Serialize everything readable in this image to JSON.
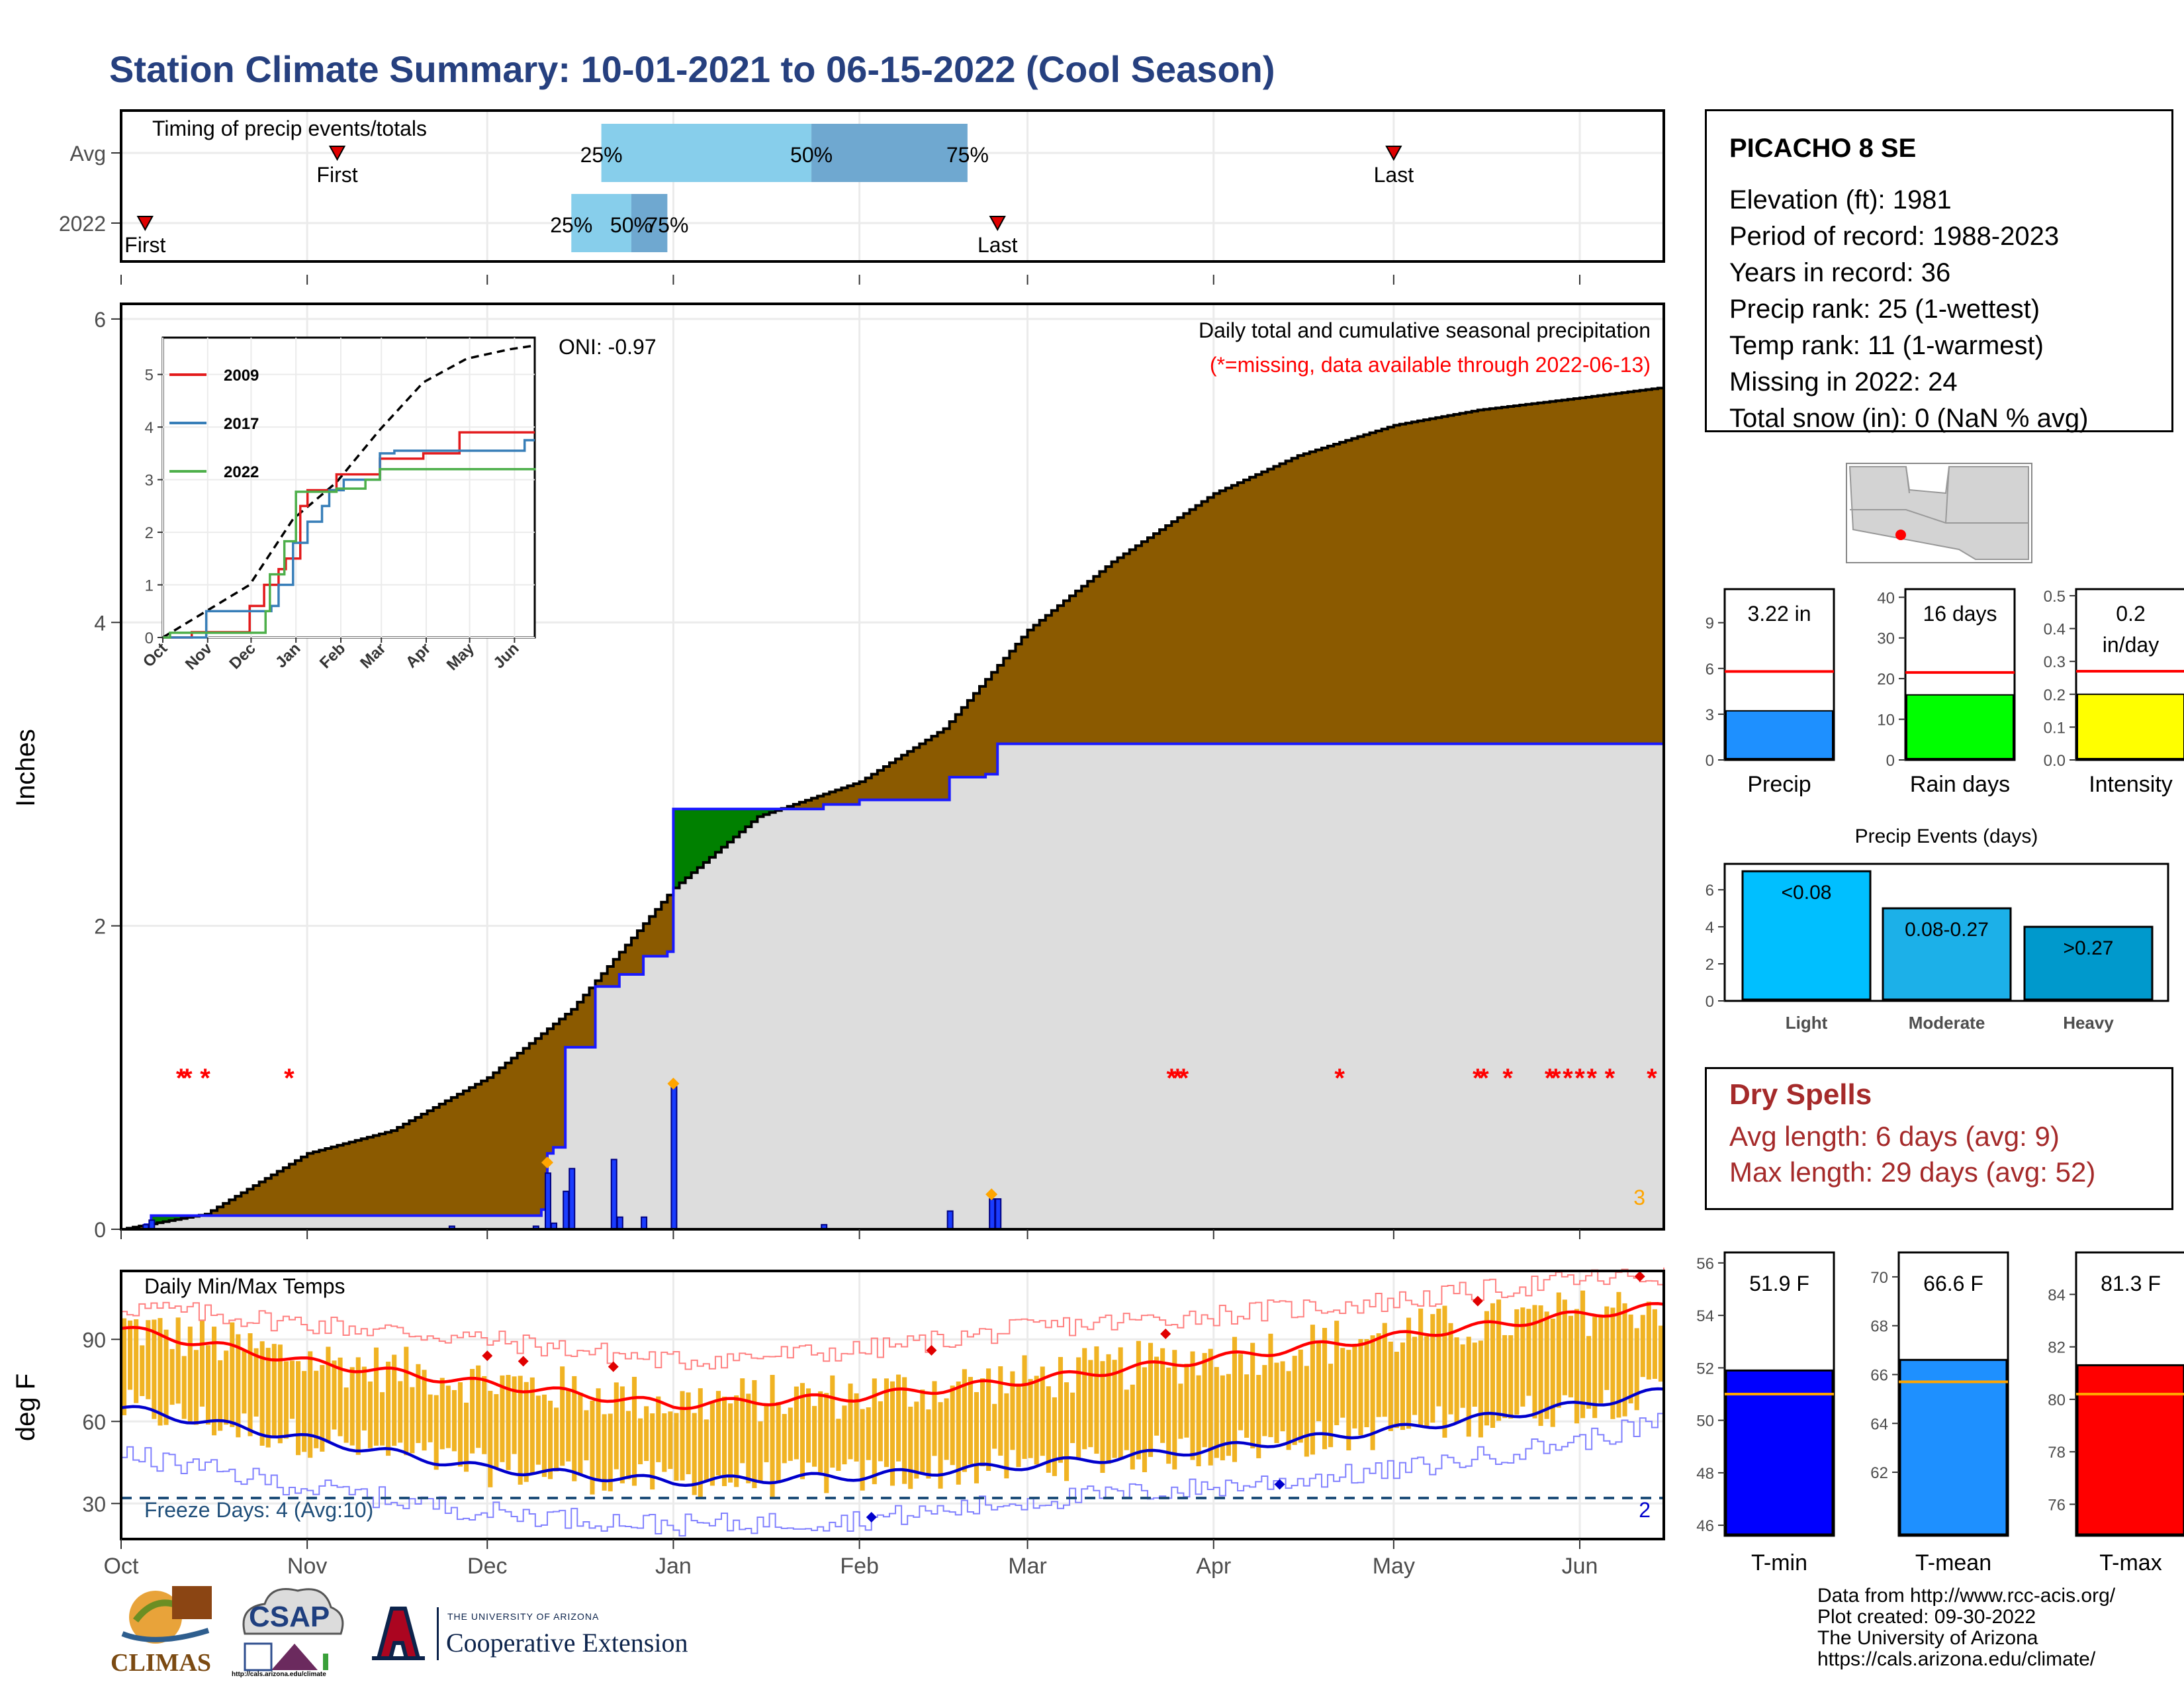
{
  "title": "Station Climate Summary: 10-01-2021 to 06-15-2022 (Cool Season)",
  "colors": {
    "title": "#26407f",
    "precip_fill": "#8b5a00",
    "normal_fill": "#dddddd",
    "deficit_fill": "#008000",
    "daily_bar": "#1a3cff",
    "temp_bar": "#f0b323",
    "tmax_line": "#ff0000",
    "tmin_line": "#0000cc",
    "missing": "#ff0000",
    "ext_marker": "#ffa500"
  },
  "timing": {
    "label": "Timing of precip events/totals",
    "rows": [
      "Avg",
      "2022"
    ],
    "avg": {
      "first_date": "2021-11-06",
      "last_date": "2022-05-01",
      "p25_date": "2021-12-20",
      "p50_date": "2022-01-24",
      "p75_date": "2022-02-19",
      "first_label": "First",
      "last_label": "Last",
      "p25_label": "25%",
      "p50_label": "50%",
      "p75_label": "75%"
    },
    "y2022": {
      "first_date": "2021-10-05",
      "last_date": "2022-02-24",
      "p25_date": "2021-12-15",
      "p50_date": "2021-12-25",
      "p75_date": "2021-12-31",
      "first_label": "First",
      "last_label": "Last",
      "p25_label": "25%",
      "p50_label": "50%",
      "p75_label": "75%"
    }
  },
  "precip_panel": {
    "ylabel": "Inches",
    "y_ticks": [
      "0",
      "2",
      "4",
      "6"
    ],
    "header": "Daily total and cumulative seasonal precipitation",
    "missing_note": "(*=missing, data available through 2022-06-13)",
    "oni": "ONI: -0.97",
    "extreme_count": "3",
    "observed_cumulative_steps": [
      [
        "2021-10-01",
        0
      ],
      [
        "2021-10-05",
        0.03
      ],
      [
        "2021-10-06",
        0.09
      ],
      [
        "2021-12-10",
        0.13
      ],
      [
        "2021-12-11",
        0.5
      ],
      [
        "2021-12-12",
        0.54
      ],
      [
        "2021-12-14",
        1.2
      ],
      [
        "2021-12-19",
        1.6
      ],
      [
        "2021-12-23",
        1.68
      ],
      [
        "2021-12-27",
        1.8
      ],
      [
        "2021-12-31",
        1.83
      ],
      [
        "2022-01-01",
        2.77
      ],
      [
        "2022-01-26",
        2.8
      ],
      [
        "2022-02-01",
        2.83
      ],
      [
        "2022-02-16",
        2.98
      ],
      [
        "2022-02-22",
        3.0
      ],
      [
        "2022-02-24",
        3.2
      ],
      [
        "2022-06-15",
        3.22
      ]
    ],
    "average_cumulative": [
      [
        "2021-10-01",
        0
      ],
      [
        "2021-10-15",
        0.1
      ],
      [
        "2021-11-01",
        0.5
      ],
      [
        "2021-11-15",
        0.65
      ],
      [
        "2021-12-01",
        1.0
      ],
      [
        "2021-12-15",
        1.45
      ],
      [
        "2022-01-01",
        2.25
      ],
      [
        "2022-01-15",
        2.72
      ],
      [
        "2022-02-01",
        2.95
      ],
      [
        "2022-02-15",
        3.3
      ],
      [
        "2022-03-01",
        3.95
      ],
      [
        "2022-03-15",
        4.4
      ],
      [
        "2022-04-01",
        4.85
      ],
      [
        "2022-04-15",
        5.1
      ],
      [
        "2022-05-01",
        5.3
      ],
      [
        "2022-05-15",
        5.4
      ],
      [
        "2022-06-01",
        5.48
      ],
      [
        "2022-06-15",
        5.55
      ]
    ],
    "daily_bars": [
      [
        "2021-10-05",
        0.03
      ],
      [
        "2021-10-06",
        0.06
      ],
      [
        "2021-11-25",
        0.02
      ],
      [
        "2021-12-09",
        0.02
      ],
      [
        "2021-12-11",
        0.37
      ],
      [
        "2021-12-12",
        0.04
      ],
      [
        "2021-12-14",
        0.25
      ],
      [
        "2021-12-15",
        0.4
      ],
      [
        "2021-12-22",
        0.46
      ],
      [
        "2021-12-23",
        0.08
      ],
      [
        "2021-12-27",
        0.08
      ],
      [
        "2022-01-01",
        0.94
      ],
      [
        "2022-01-26",
        0.03
      ],
      [
        "2022-02-16",
        0.12
      ],
      [
        "2022-02-23",
        0.2
      ],
      [
        "2022-02-24",
        0.2
      ]
    ],
    "extreme_markers": [
      [
        "2021-12-11",
        0.44
      ],
      [
        "2022-01-01",
        0.96
      ],
      [
        "2022-02-23",
        0.23
      ]
    ],
    "missing_dates": [
      "2021-10-11",
      "2021-10-12",
      "2021-10-15",
      "2021-10-29",
      "2022-03-25",
      "2022-03-26",
      "2022-03-27",
      "2022-04-22",
      "2022-05-15",
      "2022-05-16",
      "2022-05-20",
      "2022-05-27",
      "2022-05-28",
      "2022-05-30",
      "2022-06-01",
      "2022-06-03",
      "2022-06-06",
      "2022-06-13"
    ]
  },
  "inset": {
    "y_ticks": [
      "0",
      "1",
      "2",
      "3",
      "4",
      "5"
    ],
    "x_ticks": [
      "Oct",
      "Nov",
      "Dec",
      "Jan",
      "Feb",
      "Mar",
      "Apr",
      "May",
      "Jun"
    ],
    "series": [
      {
        "name": "2009",
        "color": "#e31a1c",
        "steps": [
          [
            0,
            0
          ],
          [
            20,
            0.1
          ],
          [
            60,
            0.6
          ],
          [
            70,
            1.0
          ],
          [
            80,
            1.3
          ],
          [
            85,
            1.5
          ],
          [
            95,
            2.5
          ],
          [
            100,
            2.8
          ],
          [
            120,
            3.1
          ],
          [
            150,
            3.4
          ],
          [
            180,
            3.5
          ],
          [
            205,
            3.9
          ],
          [
            250,
            3.9
          ]
        ]
      },
      {
        "name": "2017",
        "color": "#377eb8",
        "steps": [
          [
            0,
            0
          ],
          [
            30,
            0.5
          ],
          [
            75,
            0.6
          ],
          [
            80,
            1.0
          ],
          [
            90,
            1.8
          ],
          [
            100,
            2.2
          ],
          [
            110,
            2.5
          ],
          [
            115,
            2.8
          ],
          [
            125,
            3.0
          ],
          [
            150,
            3.5
          ],
          [
            160,
            3.55
          ],
          [
            200,
            3.55
          ],
          [
            250,
            3.75
          ]
        ]
      },
      {
        "name": "2022",
        "color": "#4daf4a",
        "steps": [
          [
            0,
            0
          ],
          [
            5,
            0.09
          ],
          [
            71,
            0.5
          ],
          [
            74,
            1.2
          ],
          [
            84,
            1.83
          ],
          [
            92,
            2.77
          ],
          [
            120,
            2.83
          ],
          [
            140,
            3.0
          ],
          [
            150,
            3.2
          ],
          [
            257,
            3.22
          ]
        ]
      }
    ],
    "avg_line": [
      [
        0,
        0
      ],
      [
        30,
        0.5
      ],
      [
        60,
        1.0
      ],
      [
        90,
        2.25
      ],
      [
        120,
        2.95
      ],
      [
        150,
        3.95
      ],
      [
        180,
        4.85
      ],
      [
        210,
        5.3
      ],
      [
        240,
        5.48
      ],
      [
        257,
        5.55
      ]
    ]
  },
  "temp_panel": {
    "label": "Daily Min/Max Temps",
    "ylabel": "deg F",
    "y_ticks": [
      "30",
      "60",
      "90"
    ],
    "freeze_label": "Freeze Days: 4 (Avg:10)",
    "record_count": "2",
    "x_ticks": [
      "Oct",
      "Nov",
      "Dec",
      "Jan",
      "Feb",
      "Mar",
      "Apr",
      "May",
      "Jun"
    ],
    "avg_tmax": [
      [
        0,
        94
      ],
      [
        30,
        82
      ],
      [
        60,
        74
      ],
      [
        92,
        66
      ],
      [
        123,
        69
      ],
      [
        151,
        75
      ],
      [
        182,
        83
      ],
      [
        212,
        91
      ],
      [
        243,
        99
      ],
      [
        257,
        102
      ]
    ],
    "avg_tmin": [
      [
        0,
        65
      ],
      [
        30,
        54
      ],
      [
        60,
        43
      ],
      [
        92,
        38
      ],
      [
        123,
        40
      ],
      [
        151,
        44
      ],
      [
        182,
        50
      ],
      [
        212,
        57
      ],
      [
        243,
        66
      ],
      [
        257,
        71
      ]
    ],
    "record_high": [
      [
        0,
        102
      ],
      [
        30,
        96
      ],
      [
        60,
        90
      ],
      [
        92,
        82
      ],
      [
        123,
        86
      ],
      [
        151,
        94
      ],
      [
        182,
        99
      ],
      [
        212,
        104
      ],
      [
        243,
        112
      ],
      [
        257,
        113
      ]
    ],
    "record_low": [
      [
        0,
        48
      ],
      [
        30,
        36
      ],
      [
        60,
        27
      ],
      [
        92,
        22
      ],
      [
        123,
        24
      ],
      [
        151,
        31
      ],
      [
        182,
        36
      ],
      [
        212,
        42
      ],
      [
        243,
        53
      ],
      [
        257,
        60
      ]
    ]
  },
  "station": {
    "name": "PICACHO 8 SE",
    "lines": [
      "Elevation (ft): 1981",
      "Period of record: 1988-2023",
      "Years in record: 36",
      "Precip rank: 25 (1-wettest)",
      "Temp rank: 11 (1-warmest)",
      "Missing in 2022: 24",
      "Total snow (in): 0 (NaN % avg)"
    ]
  },
  "precip_small": [
    {
      "label": "Precip",
      "value_label": "3.22 in",
      "value": 3.22,
      "avg": 5.8,
      "ymax": 11.2,
      "ticks": [
        "0",
        "3",
        "6",
        "9"
      ],
      "tick_vals": [
        0,
        3,
        6,
        9
      ],
      "color": "#1e90ff"
    },
    {
      "label": "Rain days",
      "value_label": "16 days",
      "value": 16,
      "avg": 21.5,
      "ymax": 42,
      "ticks": [
        "0",
        "10",
        "20",
        "30",
        "40"
      ],
      "tick_vals": [
        0,
        10,
        20,
        30,
        40
      ],
      "color": "#00ff00"
    },
    {
      "label": "Intensity",
      "value_label": "0.2 in/day",
      "value_line1": "0.2",
      "value_line2": "in/day",
      "value": 0.2,
      "avg": 0.27,
      "ymax": 0.52,
      "ticks": [
        "0.0",
        "0.1",
        "0.2",
        "0.3",
        "0.4",
        "0.5"
      ],
      "tick_vals": [
        0,
        0.1,
        0.2,
        0.3,
        0.4,
        0.5
      ],
      "color": "#ffff00"
    }
  ],
  "events": {
    "title": "Precip Events (days)",
    "ticks": [
      "0",
      "2",
      "4",
      "6"
    ],
    "bars": [
      {
        "category": "Light",
        "label": "<0.08",
        "value": 7,
        "color": "#00bfff"
      },
      {
        "category": "Moderate",
        "label": "0.08-0.27",
        "value": 5,
        "color": "#1cb0e8"
      },
      {
        "category": "Heavy",
        "label": ">0.27",
        "value": 4,
        "color": "#0099cc"
      }
    ]
  },
  "dry_spells": {
    "title": "Dry Spells",
    "avg_line": "Avg length: 6 days (avg: 9)",
    "max_line": "Max length: 29 days (avg: 52)",
    "color": "#a52a2a"
  },
  "temp_small": [
    {
      "label": "T-min",
      "value_label": "51.9 F",
      "value": 51.9,
      "avg": 51.0,
      "ymin": 45.6,
      "ymax": 56.4,
      "ticks": [
        "46",
        "48",
        "50",
        "52",
        "54",
        "56"
      ],
      "tick_vals": [
        46,
        48,
        50,
        52,
        54,
        56
      ],
      "color": "#0000ff"
    },
    {
      "label": "T-mean",
      "value_label": "66.6 F",
      "value": 66.6,
      "avg": 65.7,
      "ymin": 59.4,
      "ymax": 71.0,
      "ticks": [
        "62",
        "64",
        "66",
        "68",
        "70"
      ],
      "tick_vals": [
        62,
        64,
        66,
        68,
        70
      ],
      "color": "#1e90ff"
    },
    {
      "label": "T-max",
      "value_label": "81.3 F",
      "value": 81.3,
      "avg": 80.2,
      "ymin": 74.8,
      "ymax": 85.6,
      "ticks": [
        "76",
        "78",
        "80",
        "82",
        "84"
      ],
      "tick_vals": [
        76,
        78,
        80,
        82,
        84
      ],
      "color": "#ff0000"
    }
  ],
  "footer": {
    "lines": [
      "Data from http://www.rcc-acis.org/",
      "Plot created: 09-30-2022",
      "The University of Arizona",
      "https://cals.arizona.edu/climate/"
    ]
  },
  "logos": {
    "climas": "CLIMAS",
    "csap": "CSAP",
    "csap_url": "http://cals.arizona.edu/climate",
    "ua_top": "THE UNIVERSITY OF ARIZONA",
    "ua_bottom": "Cooperative Extension"
  },
  "chart_data": [
    {
      "type": "line",
      "title": "Daily total and cumulative seasonal precipitation",
      "ylabel": "Inches",
      "ylim": [
        0,
        6
      ],
      "series": [
        {
          "name": "observed cumulative",
          "values_ref": "precip_panel.observed_cumulative_steps"
        },
        {
          "name": "average cumulative",
          "values_ref": "precip_panel.average_cumulative"
        }
      ]
    },
    {
      "type": "bar",
      "title": "Precip Events (days)",
      "categories": [
        "Light",
        "Moderate",
        "Heavy"
      ],
      "values": [
        7,
        5,
        4
      ]
    },
    {
      "type": "bar",
      "categories": [
        "Precip",
        "Rain days",
        "Intensity"
      ],
      "values": [
        3.22,
        16,
        0.2
      ]
    },
    {
      "type": "bar",
      "categories": [
        "T-min",
        "T-mean",
        "T-max"
      ],
      "values": [
        51.9,
        66.6,
        81.3
      ]
    }
  ]
}
